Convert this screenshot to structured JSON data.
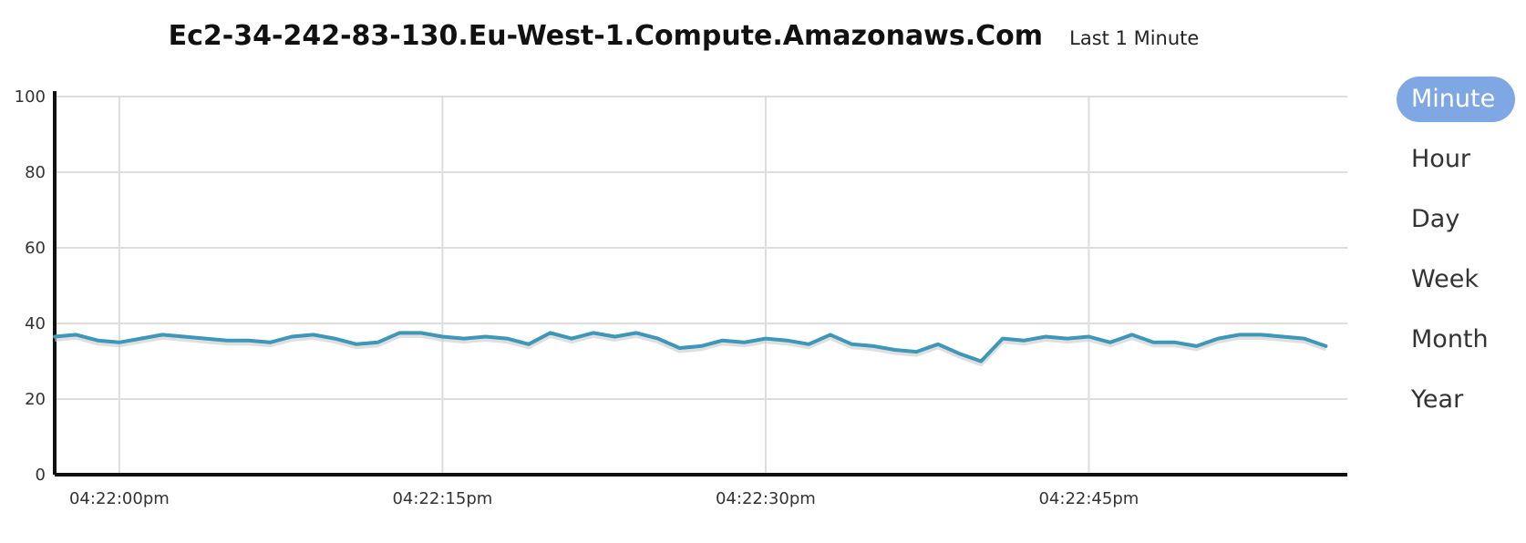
{
  "header": {
    "title": "Ec2-34-242-83-130.Eu-West-1.Compute.Amazonaws.Com",
    "subtitle": "Last 1 Minute"
  },
  "range_menu": {
    "items": [
      {
        "label": "Minute",
        "active": true
      },
      {
        "label": "Hour",
        "active": false
      },
      {
        "label": "Day",
        "active": false
      },
      {
        "label": "Week",
        "active": false
      },
      {
        "label": "Month",
        "active": false
      },
      {
        "label": "Year",
        "active": false
      }
    ]
  },
  "colors": {
    "line": "#3d97b8",
    "grid": "#dddddd",
    "axis": "#111111",
    "active_button": "#7fa7e4"
  },
  "chart_data": {
    "type": "line",
    "title": "Ec2-34-242-83-130.Eu-West-1.Compute.Amazonaws.Com",
    "subtitle": "Last 1 Minute",
    "xlabel": "",
    "ylabel": "",
    "ylim": [
      0,
      100
    ],
    "yticks": [
      0,
      20,
      40,
      60,
      80,
      100
    ],
    "xlim": [
      -3,
      57
    ],
    "xticks": [
      {
        "value": 0,
        "label": "04:22:00pm"
      },
      {
        "value": 15,
        "label": "04:22:15pm"
      },
      {
        "value": 30,
        "label": "04:22:30pm"
      },
      {
        "value": 45,
        "label": "04:22:45pm"
      }
    ],
    "grid": true,
    "legend": "none",
    "series": [
      {
        "x": [
          -3,
          -2,
          -1,
          0,
          1,
          2,
          3,
          4,
          5,
          6,
          7,
          8,
          9,
          10,
          11,
          12,
          13,
          14,
          15,
          16,
          17,
          18,
          19,
          20,
          21,
          22,
          23,
          24,
          25,
          26,
          27,
          28,
          29,
          30,
          31,
          32,
          33,
          34,
          35,
          36,
          37,
          38,
          39,
          40,
          41,
          42,
          43,
          44,
          45,
          46,
          47,
          48,
          49,
          50,
          51,
          52,
          53,
          54,
          55,
          56
        ],
        "values": [
          36.5,
          37,
          35.5,
          35,
          36,
          37,
          36.5,
          36,
          35.5,
          35.5,
          35,
          36.5,
          37,
          36,
          34.5,
          35,
          37.5,
          37.5,
          36.5,
          36,
          36.5,
          36,
          34.5,
          37.5,
          36,
          37.5,
          36.5,
          37.5,
          36,
          33.5,
          34,
          35.5,
          35,
          36,
          35.5,
          34.5,
          37,
          34.5,
          34,
          33,
          32.5,
          34.5,
          32,
          30,
          36,
          35.5,
          36.5,
          36,
          36.5,
          35,
          37,
          35,
          35,
          34,
          36,
          37,
          37,
          36.5,
          36,
          34
        ]
      }
    ]
  }
}
